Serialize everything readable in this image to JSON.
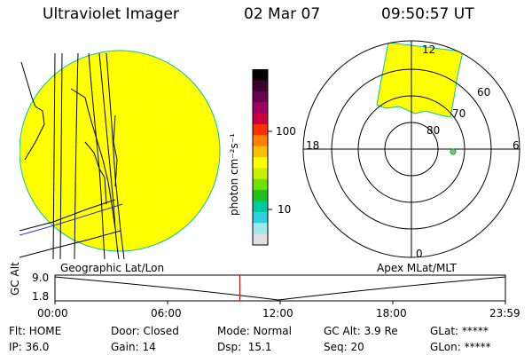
{
  "header": {
    "instrument": "Ultraviolet Imager",
    "date": "02 Mar 07",
    "time": "09:50:57 UT"
  },
  "colorbar": {
    "unit_label": "photon cm⁻²s⁻¹",
    "tick_labels": [
      "100",
      "10"
    ],
    "colors": [
      "#000000",
      "#3a0030",
      "#6a0050",
      "#9a0060",
      "#c80040",
      "#ff3000",
      "#ff8000",
      "#ffc000",
      "#ffff00",
      "#c8f000",
      "#70e000",
      "#20c020",
      "#00c8a0",
      "#30d0e0",
      "#a0e8f0",
      "#e0e0e0"
    ]
  },
  "left_panel": {
    "label": "Geographic Lat/Lon",
    "disk_color": "#ffff00",
    "rim_color": "#00c8a0"
  },
  "right_panel": {
    "label": "Apex MLat/MLT",
    "ring_labels": [
      "80",
      "70",
      "60"
    ],
    "mlt_labels": {
      "top": "12",
      "left": "18",
      "right": "6",
      "bottom": "0"
    },
    "marker_color": "#60d060"
  },
  "timeline": {
    "axis_label": "GC Alt",
    "y_labels": [
      "9.0",
      "1.8"
    ],
    "x_labels": [
      "00:00",
      "06:00",
      "12:00",
      "18:00",
      "23:59"
    ],
    "current_hour": 9.85,
    "marker_color": "#d00000"
  },
  "status": {
    "row1": [
      "Flt: HOME",
      "Door: Closed",
      "Mode: Normal",
      "GC Alt: 3.9 Re",
      "GLat: *****"
    ],
    "row2": [
      "IP: 36.0",
      "Gain: 14",
      "Dsp:  15.1",
      "Seq: 20",
      "GLon: *****"
    ]
  }
}
